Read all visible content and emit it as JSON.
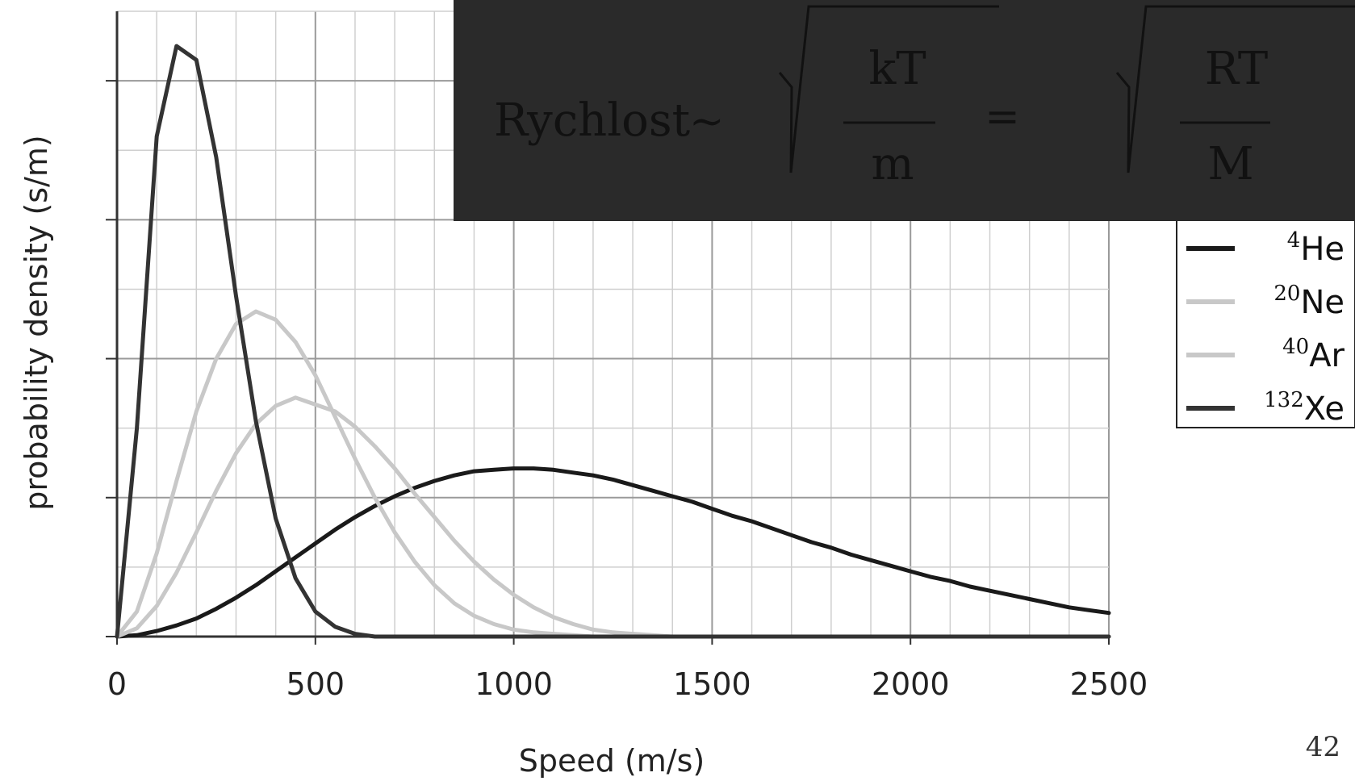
{
  "chart_data": {
    "type": "line",
    "title": "",
    "xlabel": "Speed (m/s)",
    "ylabel": "probability density (s/m)",
    "xlim": [
      0,
      2500
    ],
    "ylim": [
      0,
      0.0045
    ],
    "x_ticks": [
      0,
      500,
      1000,
      1500,
      2000,
      2500
    ],
    "x_tick_labels": [
      "0",
      "500",
      "1000",
      "1500",
      "2000",
      "2500"
    ],
    "y_ticks": [
      0,
      0.001,
      0.002,
      0.003,
      0.004
    ],
    "grid": true,
    "legend_position": "right",
    "x": [
      0,
      50,
      100,
      150,
      200,
      250,
      300,
      350,
      400,
      450,
      500,
      550,
      600,
      650,
      700,
      750,
      800,
      850,
      900,
      950,
      1000,
      1050,
      1100,
      1150,
      1200,
      1250,
      1300,
      1350,
      1400,
      1450,
      1500,
      1550,
      1600,
      1650,
      1700,
      1750,
      1800,
      1850,
      1900,
      1950,
      2000,
      2050,
      2100,
      2150,
      2200,
      2250,
      2300,
      2350,
      2400,
      2450,
      2500
    ],
    "series": [
      {
        "name": "4",
        "label_suffix": "He",
        "color": "#1a1a1a",
        "values": [
          0,
          1e-05,
          4e-05,
          8e-05,
          0.00013,
          0.0002,
          0.00028,
          0.00037,
          0.00047,
          0.00057,
          0.00067,
          0.00077,
          0.00086,
          0.00094,
          0.00101,
          0.00107,
          0.00112,
          0.00116,
          0.00119,
          0.0012,
          0.00121,
          0.00121,
          0.0012,
          0.00118,
          0.00116,
          0.00113,
          0.00109,
          0.00105,
          0.00101,
          0.00097,
          0.00092,
          0.00087,
          0.00083,
          0.00078,
          0.00073,
          0.00068,
          0.00064,
          0.00059,
          0.00055,
          0.00051,
          0.00047,
          0.00043,
          0.0004,
          0.00036,
          0.00033,
          0.0003,
          0.00027,
          0.00024,
          0.00021,
          0.00019,
          0.00017
        ]
      },
      {
        "name": "20",
        "label_suffix": "Ne",
        "color": "#c8c8c8",
        "values": [
          0,
          0.00018,
          0.0006,
          0.00112,
          0.00162,
          0.002,
          0.00225,
          0.00234,
          0.00228,
          0.00212,
          0.00188,
          0.00158,
          0.00128,
          0.001,
          0.00075,
          0.00054,
          0.00037,
          0.00024,
          0.00015,
          9e-05,
          5e-05,
          3e-05,
          2e-05,
          1e-05,
          0,
          0,
          0,
          0,
          0,
          0,
          0,
          0,
          0,
          0,
          0,
          0,
          0,
          0,
          0,
          0,
          0,
          0,
          0,
          0,
          0,
          0,
          0,
          0,
          0,
          0,
          0
        ]
      },
      {
        "name": "40",
        "label_suffix": "Ar",
        "color": "#c8c8c8",
        "values": [
          0,
          6e-05,
          0.00022,
          0.00046,
          0.00075,
          0.00105,
          0.00132,
          0.00153,
          0.00166,
          0.00172,
          0.00167,
          0.00162,
          0.00151,
          0.00137,
          0.00121,
          0.00103,
          0.00086,
          0.00069,
          0.00054,
          0.00041,
          0.0003,
          0.00021,
          0.00014,
          9e-05,
          5e-05,
          3e-05,
          2e-05,
          1e-05,
          0,
          0,
          0,
          0,
          0,
          0,
          0,
          0,
          0,
          0,
          0,
          0,
          0,
          0,
          0,
          0,
          0,
          0,
          0,
          0,
          0,
          0,
          0
        ]
      },
      {
        "name": "132",
        "label_suffix": "Xe",
        "color": "#333333",
        "values": [
          0,
          0.0015,
          0.0036,
          0.00425,
          0.00415,
          0.00345,
          0.00245,
          0.00155,
          0.00085,
          0.00042,
          0.00018,
          7e-05,
          2e-05,
          0,
          0,
          0,
          0,
          0,
          0,
          0,
          0,
          0,
          0,
          0,
          0,
          0,
          0,
          0,
          0,
          0,
          0,
          0,
          0,
          0,
          0,
          0,
          0,
          0,
          0,
          0,
          0,
          0,
          0,
          0,
          0,
          0,
          0,
          0,
          0,
          0,
          0
        ]
      }
    ]
  },
  "formula": {
    "word": "Rychlost",
    "tilde": "~",
    "num1": "kT",
    "den1": "m",
    "equals": "=",
    "num2": "RT",
    "den2": "M"
  },
  "page": {
    "number": "42"
  }
}
